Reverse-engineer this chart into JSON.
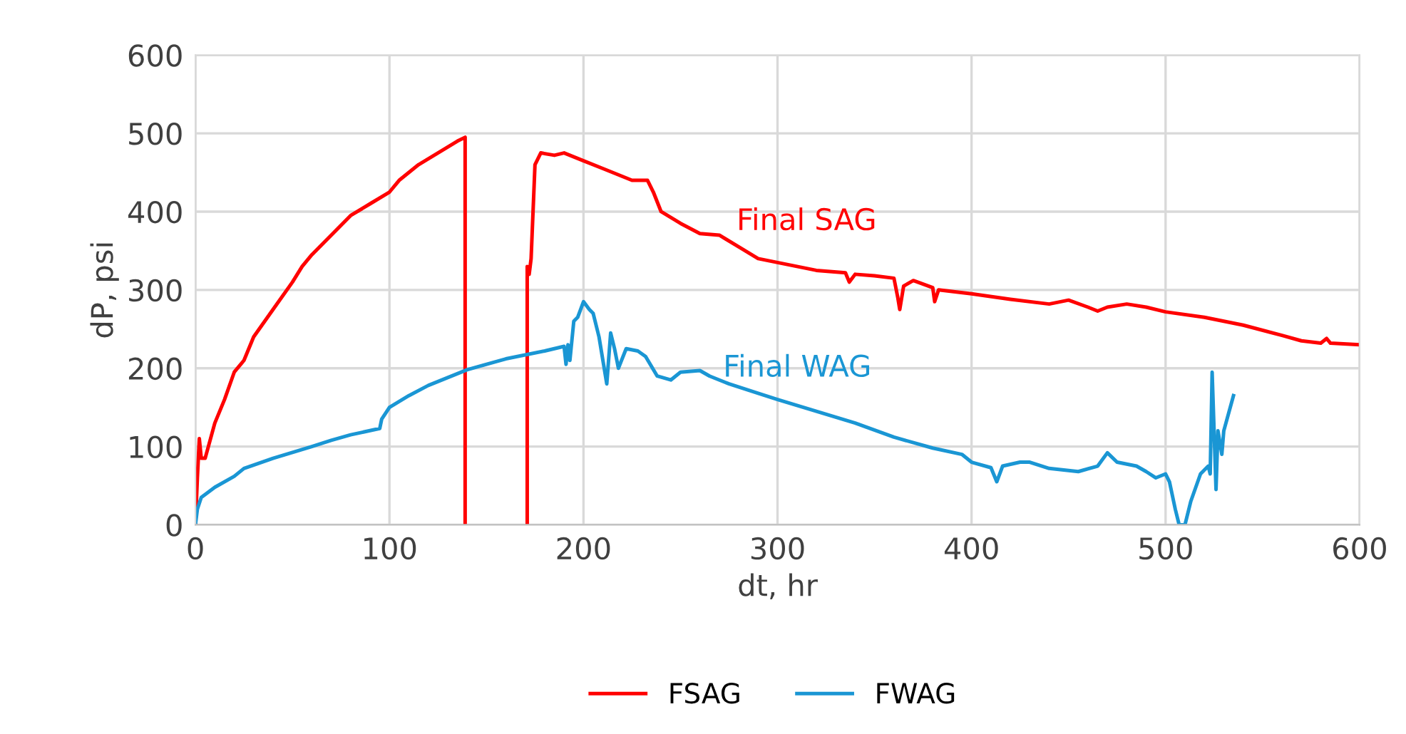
{
  "chart_data": {
    "type": "line",
    "xlabel": "dt, hr",
    "ylabel": "dP, psi",
    "xlim": [
      0,
      600
    ],
    "ylim": [
      0,
      600
    ],
    "xticks": [
      0,
      100,
      200,
      300,
      400,
      500,
      600
    ],
    "yticks": [
      0,
      100,
      200,
      300,
      400,
      500,
      600
    ],
    "grid": true,
    "legend": "bottom",
    "marker": "none",
    "line_style": "solid",
    "annotations": [
      "Final SAG",
      "Final WAG"
    ],
    "series": [
      {
        "name": "FSAG",
        "color": "#ff0000",
        "x": [
          0,
          1,
          2,
          3,
          5,
          10,
          15,
          20,
          25,
          30,
          40,
          50,
          55,
          60,
          70,
          80,
          90,
          100,
          105,
          115,
          125,
          135,
          139,
          139,
          155,
          171,
          171,
          172,
          173,
          175,
          178,
          185,
          190,
          195,
          200,
          210,
          220,
          225,
          230,
          233,
          236,
          240,
          250,
          260,
          270,
          280,
          290,
          300,
          310,
          320,
          335,
          337,
          340,
          350,
          360,
          362,
          363,
          365,
          370,
          380,
          381,
          383,
          400,
          420,
          440,
          450,
          460,
          465,
          470,
          480,
          490,
          500,
          520,
          540,
          560,
          570,
          580,
          583,
          585,
          600
        ],
        "values": [
          0,
          60,
          110,
          85,
          85,
          130,
          160,
          195,
          210,
          240,
          275,
          310,
          330,
          345,
          370,
          395,
          410,
          425,
          440,
          460,
          475,
          490,
          495,
          0,
          null,
          0,
          330,
          320,
          340,
          460,
          475,
          472,
          475,
          470,
          465,
          455,
          445,
          440,
          440,
          440,
          425,
          400,
          385,
          372,
          370,
          355,
          340,
          335,
          330,
          325,
          322,
          310,
          320,
          318,
          315,
          290,
          275,
          305,
          312,
          303,
          285,
          300,
          295,
          288,
          282,
          287,
          278,
          273,
          278,
          282,
          278,
          272,
          265,
          255,
          242,
          235,
          232,
          238,
          232,
          230
        ]
      },
      {
        "name": "FWAG",
        "color": "#1a96d4",
        "x": [
          0,
          1,
          3,
          10,
          20,
          25,
          40,
          60,
          70,
          80,
          95,
          96,
          100,
          110,
          120,
          140,
          160,
          180,
          190,
          191,
          192,
          193,
          195,
          197,
          200,
          203,
          205,
          208,
          210,
          212,
          214,
          216,
          218,
          222,
          228,
          232,
          238,
          245,
          250,
          260,
          265,
          275,
          290,
          300,
          320,
          340,
          360,
          380,
          395,
          400,
          410,
          413,
          416,
          425,
          430,
          440,
          455,
          465,
          470,
          475,
          485,
          490,
          495,
          500,
          502,
          505,
          507,
          510,
          513,
          518,
          522,
          523,
          524,
          526,
          527,
          529,
          530,
          535
        ],
        "values": [
          0,
          20,
          35,
          48,
          62,
          72,
          85,
          100,
          108,
          115,
          123,
          135,
          150,
          165,
          178,
          198,
          212,
          222,
          228,
          205,
          230,
          210,
          260,
          265,
          285,
          275,
          270,
          240,
          210,
          180,
          245,
          225,
          200,
          225,
          222,
          215,
          190,
          185,
          195,
          197,
          190,
          180,
          168,
          160,
          145,
          130,
          112,
          98,
          90,
          80,
          73,
          55,
          75,
          80,
          80,
          72,
          68,
          75,
          92,
          80,
          75,
          68,
          60,
          65,
          55,
          20,
          0,
          0,
          30,
          65,
          75,
          65,
          195,
          45,
          120,
          90,
          120,
          165
        ]
      }
    ]
  }
}
